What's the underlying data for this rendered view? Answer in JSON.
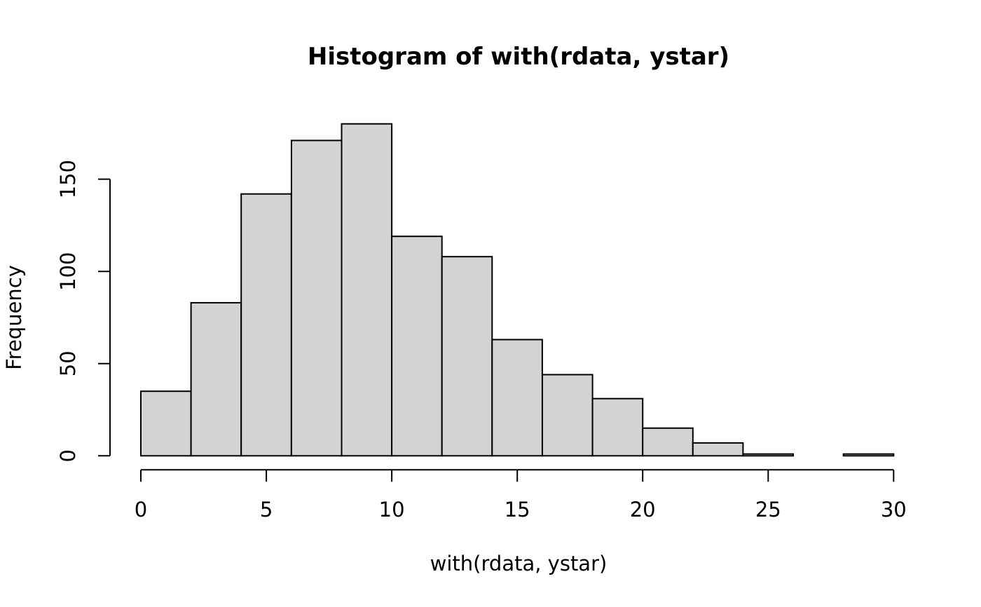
{
  "chart_data": {
    "type": "bar",
    "subtype": "histogram",
    "title": "Histogram of with(rdata, ystar)",
    "xlabel": "with(rdata, ystar)",
    "ylabel": "Frequency",
    "bin_start": 0,
    "bin_width": 2,
    "bin_edges": [
      0,
      2,
      4,
      6,
      8,
      10,
      12,
      14,
      16,
      18,
      20,
      22,
      24,
      26,
      28,
      30
    ],
    "counts": [
      35,
      83,
      142,
      171,
      180,
      119,
      108,
      63,
      44,
      31,
      15,
      7,
      1,
      0,
      1
    ],
    "x_ticks": [
      0,
      5,
      10,
      15,
      20,
      25,
      30
    ],
    "y_ticks": [
      0,
      50,
      100,
      150
    ],
    "xlim": [
      0,
      30
    ],
    "ylim": [
      0,
      180
    ],
    "grid": false,
    "legend_position": "none",
    "colors": {
      "bar_fill": "#d3d3d3",
      "bar_stroke": "#000000",
      "axis": "#000000",
      "text": "#000000",
      "background": "#ffffff"
    }
  }
}
